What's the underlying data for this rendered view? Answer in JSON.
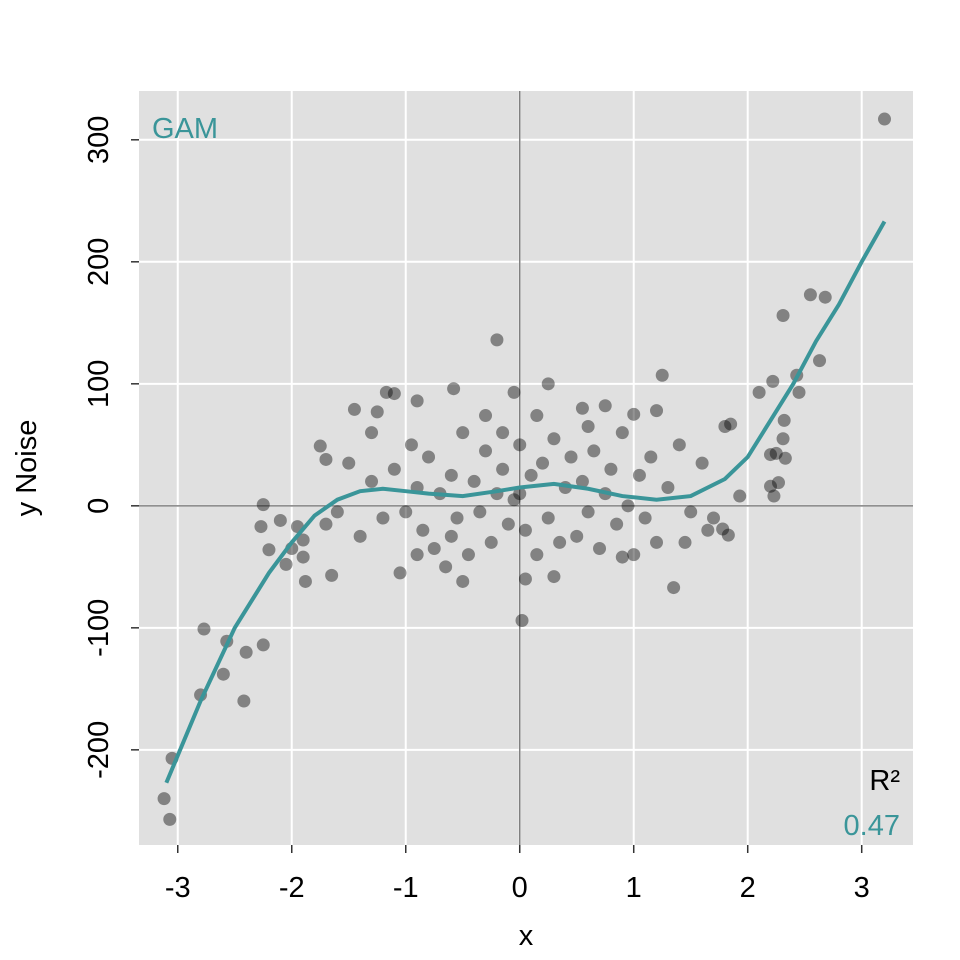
{
  "chart_data": {
    "type": "scatter",
    "xlabel": "x",
    "ylabel": "y Noise",
    "xlim": [
      -3.34,
      3.45
    ],
    "ylim": [
      -278,
      340
    ],
    "xticks": [
      -3,
      -2,
      -1,
      0,
      1,
      2,
      3
    ],
    "yticks": [
      -200,
      -100,
      0,
      100,
      200,
      300
    ],
    "grid": true,
    "points": {
      "color": "#000000",
      "x": [
        3.2,
        2.55,
        2.68,
        2.31,
        2.63,
        2.43,
        2.22,
        2.1,
        2.45,
        2.32,
        2.31,
        2.33,
        2.2,
        2.25,
        2.2,
        2.23,
        2.27,
        1.93,
        1.85,
        1.8,
        1.83,
        1.78,
        -3.05,
        -3.12,
        -3.07,
        -2.8,
        -2.77,
        -2.6,
        -2.57,
        -2.4,
        -2.42,
        -2.25,
        -2.25,
        -2.27,
        -2.1,
        -2.2,
        -2.05,
        -2.0,
        -1.95,
        -1.9,
        -1.88,
        -1.9,
        -1.65,
        -1.75,
        -1.7,
        -0.2,
        0.02,
        1.35,
        1.25,
        0.25,
        -0.58,
        -1.25,
        -1.45,
        -1.1,
        -1.17,
        -0.9,
        0.15,
        1.0,
        1.2,
        0.75,
        0.55,
        -0.3,
        -0.15,
        -0.05,
        -1.5,
        -1.3,
        -1.2,
        -1.1,
        -1.0,
        -0.95,
        -0.9,
        -0.85,
        -0.8,
        -0.75,
        -0.7,
        -0.65,
        -0.6,
        -0.55,
        -0.5,
        -0.45,
        -0.4,
        -0.35,
        -0.3,
        -0.25,
        -0.2,
        -0.15,
        -0.1,
        -0.05,
        0,
        0.05,
        0.1,
        0.15,
        0.2,
        0.25,
        0.3,
        0.35,
        0.4,
        0.45,
        0.5,
        0.55,
        0.6,
        0.65,
        0.7,
        0.75,
        0.8,
        0.85,
        0.9,
        0.95,
        1.0,
        1.05,
        1.1,
        1.15,
        1.2,
        1.3,
        1.4,
        1.5,
        1.6,
        1.7,
        -1.6,
        -1.4,
        -1.3,
        -1.05,
        0.05,
        0.3,
        -0.5,
        0.9,
        -1.7,
        1.45,
        1.65,
        0.0,
        -0.6,
        0.6,
        -0.9
      ],
      "y": [
        317,
        173,
        171,
        156,
        119,
        107,
        102,
        93,
        93,
        70,
        55,
        39,
        42,
        43,
        16,
        8,
        19,
        8,
        67,
        65,
        -24,
        -19,
        -207,
        -240,
        -257,
        -155,
        -101,
        -138,
        -111,
        -120,
        -160,
        -114,
        1,
        -17,
        -12,
        -36,
        -48,
        -35,
        -17,
        -42,
        -62,
        -28,
        -57,
        49,
        38,
        136,
        -94,
        -67,
        107,
        100,
        96,
        77,
        79,
        92,
        93,
        86,
        74,
        75,
        78,
        82,
        80,
        74,
        60,
        93,
        35,
        20,
        -10,
        30,
        -5,
        50,
        15,
        -20,
        40,
        -35,
        10,
        -50,
        25,
        -10,
        60,
        -40,
        20,
        -5,
        45,
        -30,
        10,
        30,
        -15,
        5,
        50,
        -20,
        25,
        -40,
        35,
        -10,
        55,
        -30,
        15,
        40,
        -25,
        20,
        -5,
        45,
        -35,
        10,
        30,
        -15,
        60,
        0,
        -40,
        25,
        -10,
        40,
        -30,
        15,
        50,
        -5,
        35,
        -10,
        -5,
        -25,
        60,
        -55,
        -60,
        -58,
        -62,
        -42,
        -15,
        -30,
        -20,
        10,
        -25,
        65,
        -40
      ]
    },
    "fit": {
      "name": "GAM",
      "color": "#3a9599",
      "x": [
        -3.1,
        -2.8,
        -2.5,
        -2.2,
        -2.0,
        -1.8,
        -1.6,
        -1.4,
        -1.2,
        -1.0,
        -0.8,
        -0.5,
        -0.2,
        0.0,
        0.3,
        0.6,
        0.9,
        1.2,
        1.5,
        1.8,
        2.0,
        2.2,
        2.4,
        2.6,
        2.8,
        3.0,
        3.2
      ],
      "y": [
        -227,
        -160,
        -100,
        -55,
        -30,
        -8,
        5,
        12,
        14,
        12,
        10,
        8,
        12,
        15,
        18,
        14,
        8,
        5,
        8,
        22,
        40,
        70,
        100,
        135,
        165,
        200,
        233
      ]
    },
    "r2_label": "R²",
    "r2": 0.47
  }
}
